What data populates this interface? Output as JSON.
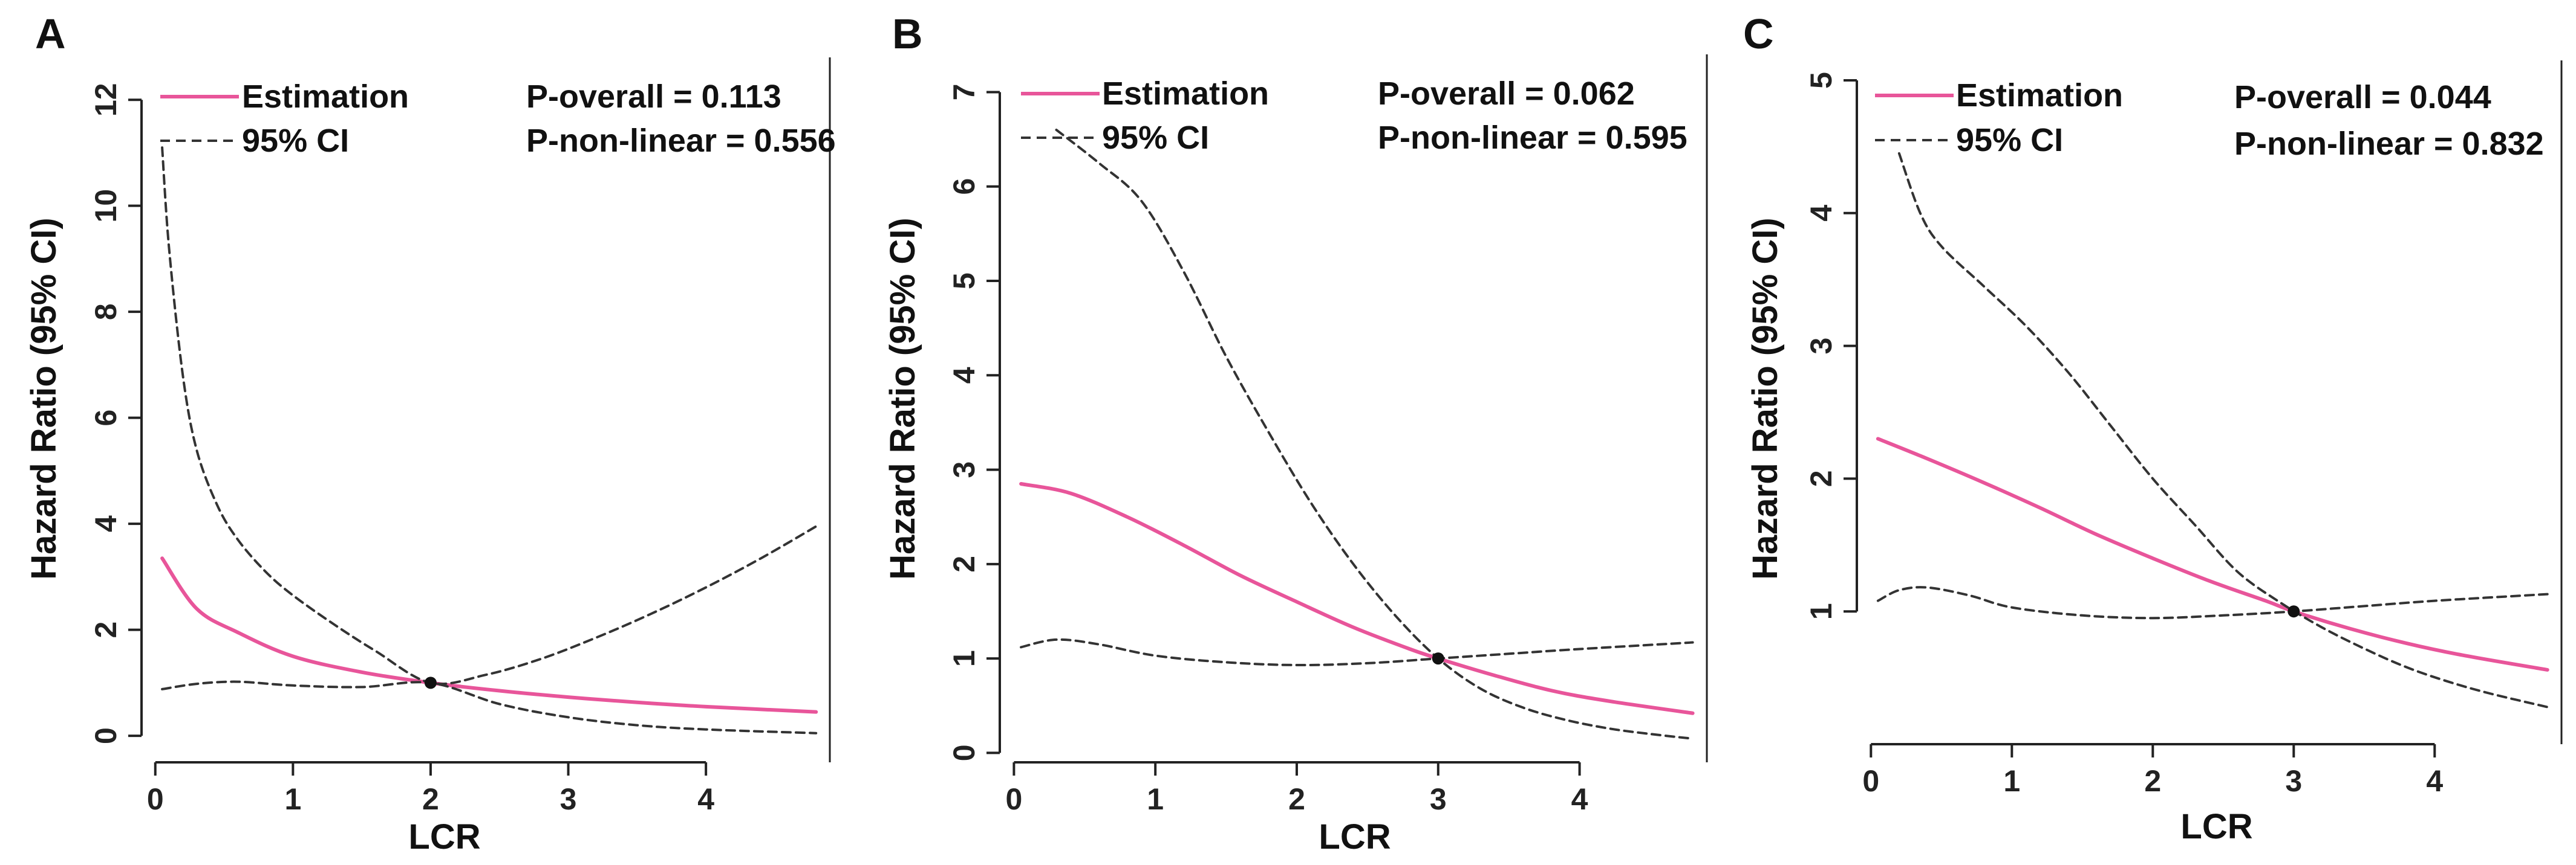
{
  "chart_data": [
    {
      "panel": "A",
      "type": "line",
      "xlabel": "LCR",
      "ylabel": "Hazard Ratio (95% CI)",
      "xlim": [
        -0.1,
        4.9
      ],
      "ylim": [
        -0.5,
        12.8
      ],
      "xticks": [
        0,
        1,
        2,
        3,
        4
      ],
      "yticks": [
        0,
        2,
        4,
        6,
        8,
        10,
        12
      ],
      "legend": {
        "estimation": "Estimation",
        "ci": "95% CI"
      },
      "annotations": [
        "P-overall = 0.113",
        "P-non-linear = 0.556"
      ],
      "ref_point": [
        2,
        1
      ],
      "series": [
        {
          "name": "Estimation",
          "x": [
            0.05,
            0.3,
            0.6,
            1.0,
            1.5,
            2.0,
            2.5,
            3.0,
            3.5,
            4.0,
            4.8
          ],
          "values": [
            3.35,
            2.4,
            1.95,
            1.5,
            1.2,
            1.0,
            0.85,
            0.73,
            0.63,
            0.55,
            0.45
          ]
        },
        {
          "name": "95% CI upper",
          "x": [
            0.05,
            0.1,
            0.2,
            0.3,
            0.45,
            0.6,
            0.8,
            1.0,
            1.3,
            1.6,
            2.0,
            2.4,
            2.8,
            3.2,
            3.6,
            4.0,
            4.4,
            4.8
          ],
          "values": [
            11.1,
            9.2,
            6.8,
            5.4,
            4.35,
            3.7,
            3.1,
            2.65,
            2.1,
            1.6,
            1.0,
            1.15,
            1.45,
            1.85,
            2.3,
            2.8,
            3.35,
            3.95
          ]
        },
        {
          "name": "95% CI lower",
          "x": [
            0.05,
            0.3,
            0.6,
            1.0,
            1.5,
            2.0,
            2.5,
            3.0,
            3.5,
            4.0,
            4.8
          ],
          "values": [
            0.88,
            0.98,
            1.02,
            0.95,
            0.92,
            1.0,
            0.6,
            0.35,
            0.2,
            0.12,
            0.05
          ]
        }
      ]
    },
    {
      "panel": "B",
      "type": "line",
      "xlabel": "LCR",
      "ylabel": "Hazard Ratio (95% CI)",
      "xlim": [
        -0.1,
        4.9
      ],
      "ylim": [
        -0.1,
        7.4
      ],
      "xticks": [
        0,
        1,
        2,
        3,
        4
      ],
      "yticks": [
        0,
        1,
        2,
        3,
        4,
        5,
        6,
        7
      ],
      "legend": {
        "estimation": "Estimation",
        "ci": "95% CI"
      },
      "annotations": [
        "P-overall = 0.062",
        "P-non-linear = 0.595"
      ],
      "ref_point": [
        3,
        1
      ],
      "series": [
        {
          "name": "Estimation",
          "x": [
            0.05,
            0.4,
            0.8,
            1.2,
            1.6,
            2.0,
            2.4,
            2.8,
            3.0,
            3.4,
            3.8,
            4.2,
            4.8
          ],
          "values": [
            2.85,
            2.75,
            2.5,
            2.2,
            1.88,
            1.6,
            1.33,
            1.1,
            1.0,
            0.82,
            0.66,
            0.55,
            0.42
          ]
        },
        {
          "name": "95% CI upper",
          "x": [
            0.3,
            0.6,
            0.9,
            1.2,
            1.5,
            1.8,
            2.1,
            2.4,
            2.7,
            3.0,
            3.3,
            3.6,
            3.9,
            4.2,
            4.5,
            4.8
          ],
          "values": [
            6.6,
            6.25,
            5.85,
            5.1,
            4.2,
            3.4,
            2.65,
            2.0,
            1.45,
            1.0,
            0.68,
            0.48,
            0.35,
            0.26,
            0.2,
            0.15
          ]
        },
        {
          "name": "95% CI lower",
          "x": [
            0.05,
            0.3,
            0.6,
            1.0,
            1.5,
            2.0,
            2.5,
            3.0,
            3.5,
            4.0,
            4.8
          ],
          "values": [
            1.12,
            1.2,
            1.15,
            1.03,
            0.96,
            0.93,
            0.95,
            1.0,
            1.05,
            1.1,
            1.17
          ]
        }
      ]
    },
    {
      "panel": "C",
      "type": "line",
      "xlabel": "LCR",
      "ylabel": "Hazard Ratio (95% CI)",
      "xlim": [
        -0.1,
        4.9
      ],
      "ylim": [
        0.0,
        5.15
      ],
      "xticks": [
        0,
        1,
        2,
        3,
        4
      ],
      "yticks": [
        1,
        2,
        3,
        4,
        5
      ],
      "legend": {
        "estimation": "Estimation",
        "ci": "95% CI"
      },
      "annotations": [
        "P-overall = 0.044",
        "P-non-linear = 0.832"
      ],
      "ref_point": [
        3,
        1
      ],
      "series": [
        {
          "name": "Estimation",
          "x": [
            0.05,
            0.4,
            0.8,
            1.2,
            1.6,
            2.0,
            2.4,
            2.8,
            3.0,
            3.4,
            3.8,
            4.2,
            4.8
          ],
          "values": [
            2.3,
            2.15,
            1.97,
            1.78,
            1.58,
            1.4,
            1.23,
            1.08,
            1.0,
            0.87,
            0.76,
            0.67,
            0.56
          ]
        },
        {
          "name": "95% CI upper",
          "x": [
            0.2,
            0.35,
            0.5,
            0.8,
            1.1,
            1.4,
            1.7,
            2.0,
            2.3,
            2.6,
            2.9,
            3.2,
            3.5,
            3.8,
            4.1,
            4.4,
            4.8
          ],
          "values": [
            4.45,
            4.0,
            3.75,
            3.45,
            3.15,
            2.8,
            2.4,
            2.0,
            1.65,
            1.3,
            1.07,
            0.88,
            0.72,
            0.58,
            0.47,
            0.38,
            0.28
          ]
        },
        {
          "name": "95% CI lower",
          "x": [
            0.05,
            0.2,
            0.4,
            0.7,
            1.0,
            1.5,
            2.0,
            2.5,
            3.0,
            3.5,
            4.0,
            4.8
          ],
          "values": [
            1.08,
            1.16,
            1.18,
            1.12,
            1.03,
            0.97,
            0.95,
            0.97,
            1.0,
            1.04,
            1.08,
            1.13
          ]
        }
      ]
    }
  ],
  "colors": {
    "estimation": "#e8559a",
    "ci": "#333333",
    "axis": "#222222"
  }
}
